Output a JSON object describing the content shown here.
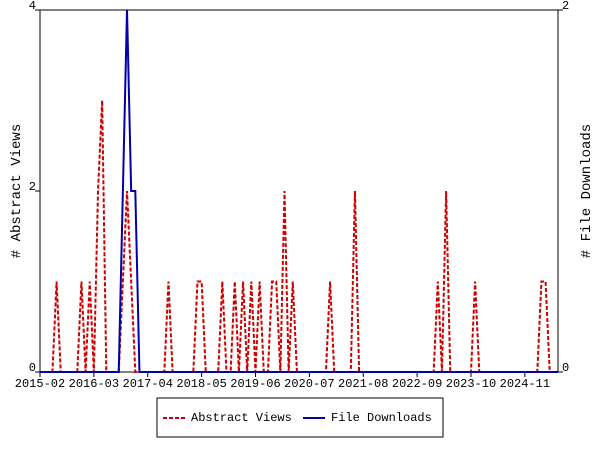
{
  "chart_data": {
    "type": "line",
    "ylabel": "# Abstract Views",
    "y2label": "# File Downloads",
    "categories": [
      "2015-02",
      null,
      null,
      null,
      null,
      null,
      null,
      null,
      null,
      null,
      null,
      null,
      null,
      "2016-03",
      null,
      null,
      null,
      null,
      null,
      null,
      null,
      null,
      null,
      null,
      null,
      null,
      "2017-04",
      null,
      null,
      null,
      null,
      null,
      null,
      null,
      null,
      null,
      null,
      null,
      null,
      "2018-05",
      null,
      null,
      null,
      null,
      null,
      null,
      null,
      null,
      null,
      null,
      null,
      null,
      "2019-06",
      null,
      null,
      null,
      null,
      null,
      null,
      null,
      null,
      null,
      null,
      null,
      null,
      "2020-07",
      null,
      null,
      null,
      null,
      null,
      null,
      null,
      null,
      null,
      null,
      null,
      null,
      "2021-08",
      null,
      null,
      null,
      null,
      null,
      null,
      null,
      null,
      null,
      null,
      null,
      null,
      "2022-09",
      null,
      null,
      null,
      null,
      null,
      null,
      null,
      null,
      null,
      null,
      null,
      null,
      "2023-10",
      null,
      null,
      null,
      null,
      null,
      null,
      null,
      null,
      null,
      null,
      null,
      null,
      "2024-11",
      null,
      null,
      null,
      null,
      null,
      null,
      null,
      null
    ],
    "series": [
      {
        "name": "Abstract Views",
        "color": "#cc0000",
        "dashed": true,
        "values": [
          0,
          0,
          0,
          0,
          1,
          0,
          0,
          0,
          0,
          0,
          1,
          0,
          1,
          0,
          2,
          3,
          0,
          0,
          0,
          0,
          1,
          2,
          1,
          0,
          0,
          0,
          0,
          0,
          0,
          0,
          0,
          1,
          0,
          0,
          0,
          0,
          0,
          0,
          1,
          1,
          0,
          0,
          0,
          0,
          1,
          0,
          0,
          1,
          0,
          1,
          0,
          1,
          0,
          1,
          0,
          0,
          1,
          1,
          0,
          2,
          0,
          1,
          0,
          0,
          0,
          0,
          0,
          0,
          0,
          0,
          1,
          0,
          0,
          0,
          0,
          0,
          2,
          0,
          0,
          0,
          0,
          0,
          0,
          0,
          0,
          0,
          0,
          0,
          0,
          0,
          0,
          0,
          0,
          0,
          0,
          0,
          1,
          0,
          2,
          0,
          0,
          0,
          0,
          0,
          0,
          1,
          0,
          0,
          0,
          0,
          0,
          0,
          0,
          0,
          0,
          0,
          0,
          0,
          0,
          0,
          0,
          1,
          1,
          0,
          0,
          0
        ]
      },
      {
        "name": "File Downloads",
        "color": "#0000aa",
        "dashed": false,
        "axis": "y2",
        "values": [
          0,
          0,
          0,
          0,
          0,
          0,
          0,
          0,
          0,
          0,
          0,
          0,
          0,
          0,
          0,
          0,
          0,
          0,
          0,
          0,
          1,
          2,
          1,
          1,
          0,
          0,
          0,
          0,
          0,
          0,
          0,
          0,
          0,
          0,
          0,
          0,
          0,
          0,
          0,
          0,
          0,
          0,
          0,
          0,
          0,
          0,
          0,
          0,
          0,
          0,
          0,
          0,
          0,
          0,
          0,
          0,
          0,
          0,
          0,
          0,
          0,
          0,
          0,
          0,
          0,
          0,
          0,
          0,
          0,
          0,
          0,
          0,
          0,
          0,
          0,
          0,
          0,
          0,
          0,
          0,
          0,
          0,
          0,
          0,
          0,
          0,
          0,
          0,
          0,
          0,
          0,
          0,
          0,
          0,
          0,
          0,
          0,
          0,
          0,
          0,
          0,
          0,
          0,
          0,
          0,
          0,
          0,
          0,
          0,
          0,
          0,
          0,
          0,
          0,
          0,
          0,
          0,
          0,
          0,
          0,
          0,
          0,
          0,
          0,
          0,
          0
        ]
      }
    ],
    "ylim": [
      0,
      4
    ],
    "yticks": [
      0,
      2,
      4
    ],
    "y2lim": [
      0,
      2
    ],
    "y2ticks": [
      0,
      2
    ],
    "legend": "bottom"
  }
}
